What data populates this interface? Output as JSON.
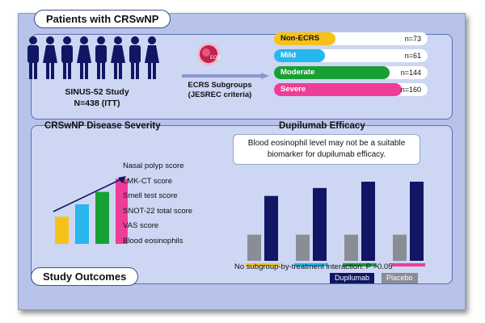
{
  "header": {
    "title": "Patients with CRSwNP"
  },
  "study": {
    "line1": "SINUS-52 Study",
    "line2": "N=438 (ITT)"
  },
  "ecrs": {
    "line1": "ECRS Subgroups",
    "line2": "(JESREC criteria)",
    "logo_icon": "eosinophil-cell-icon",
    "logo_text": "EOS"
  },
  "subgroups": [
    {
      "label": "Non-ECRS",
      "n": "n=73",
      "color": "#f6c21a",
      "fill": 0.4,
      "dark": true
    },
    {
      "label": "Mild",
      "n": "n=61",
      "color": "#26b7ec",
      "fill": 0.33,
      "dark": false
    },
    {
      "label": "Moderate",
      "n": "n=144",
      "color": "#18a035",
      "fill": 0.75,
      "dark": false
    },
    {
      "label": "Severe",
      "n": "n=160",
      "color": "#ee3d96",
      "fill": 0.83,
      "dark": false
    }
  ],
  "severity": {
    "title": "CRSwNP Disease Severity",
    "bar_colors": [
      "#f6c21a",
      "#26b7ec",
      "#18a035",
      "#ee3d96"
    ],
    "bar_levels": [
      0.35,
      0.51,
      0.67,
      0.84
    ],
    "scores": [
      "Nasal polyp score",
      "LMK-CT score",
      "Smell test score",
      "SNOT-22 total score",
      "VAS score",
      "Blood eosinophils"
    ]
  },
  "efficacy": {
    "title": "Dupilumab Efficacy",
    "callout_line1": "Blood eosinophil level may not be a suitable",
    "callout_line2": "biomarker for dupilumab efficacy.",
    "groups": [
      {
        "color": "#f6c21a",
        "placebo": 0.33,
        "dupilumab": 0.82
      },
      {
        "color": "#26b7ec",
        "placebo": 0.33,
        "dupilumab": 0.92
      },
      {
        "color": "#18a035",
        "placebo": 0.33,
        "dupilumab": 1.0
      },
      {
        "color": "#ee3d96",
        "placebo": 0.33,
        "dupilumab": 1.0
      }
    ],
    "footnote": "No subgroup-by-treatment interaction: P >0.05",
    "legend_dupilumab": "Dupilumab",
    "legend_placebo": "Placebo"
  },
  "outcomes": {
    "title": "Study Outcomes"
  },
  "colors": {
    "navy": "#101663",
    "placebo": "#8a8d96",
    "frame": "#b7c3e9",
    "panel": "#cdd6f3"
  }
}
